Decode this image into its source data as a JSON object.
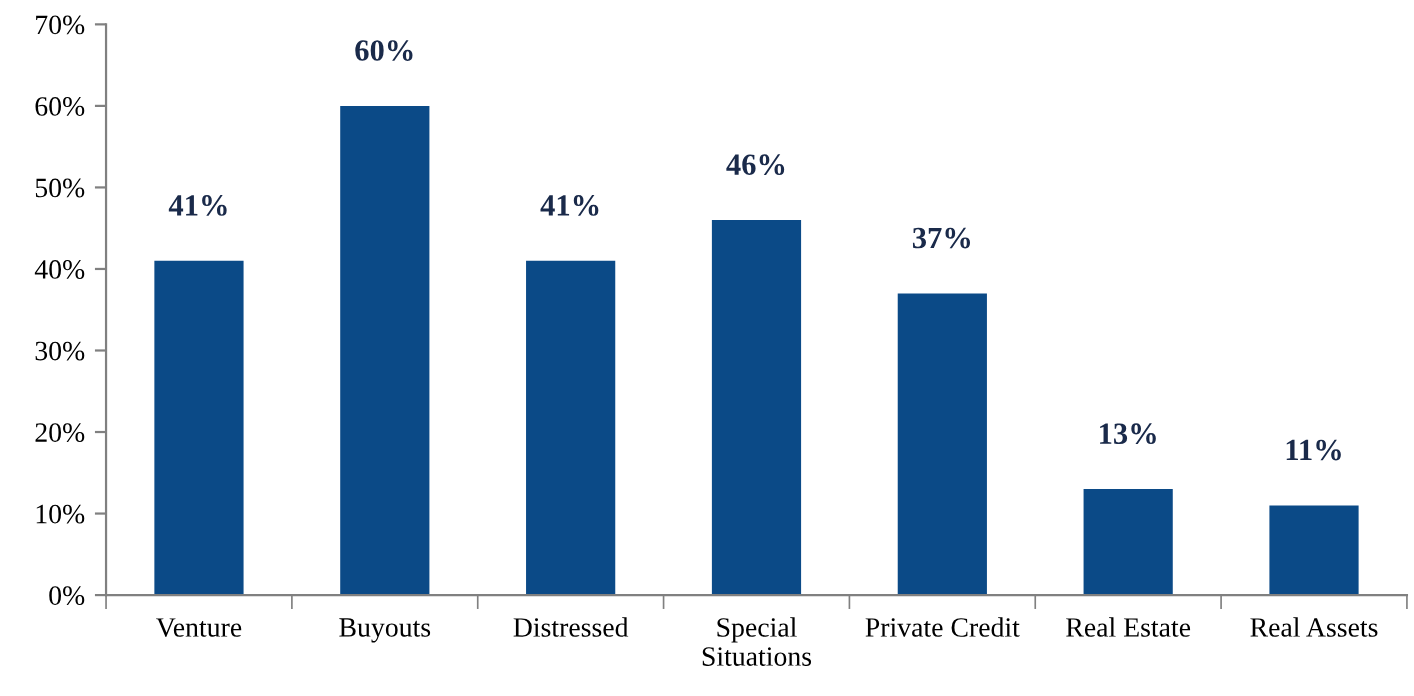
{
  "chart_data": {
    "type": "bar",
    "categories": [
      "Venture",
      "Buyouts",
      "Distressed",
      "Special\nSituations",
      "Private Credit",
      "Real Estate",
      "Real Assets"
    ],
    "values": [
      41,
      60,
      41,
      46,
      37,
      13,
      11
    ],
    "value_labels": [
      "41%",
      "60%",
      "41%",
      "46%",
      "37%",
      "13%",
      "11%"
    ],
    "color": "#0b4a87",
    "ylim": [
      0,
      70
    ],
    "yticks": [
      {
        "value": 0,
        "label": "0%"
      },
      {
        "value": 10,
        "label": "10%"
      },
      {
        "value": 20,
        "label": "20%"
      },
      {
        "value": 30,
        "label": "30%"
      },
      {
        "value": 40,
        "label": "40%"
      },
      {
        "value": 50,
        "label": "50%"
      },
      {
        "value": 60,
        "label": "60%"
      },
      {
        "value": 70,
        "label": "70%"
      }
    ],
    "grid": false,
    "legend": false
  }
}
